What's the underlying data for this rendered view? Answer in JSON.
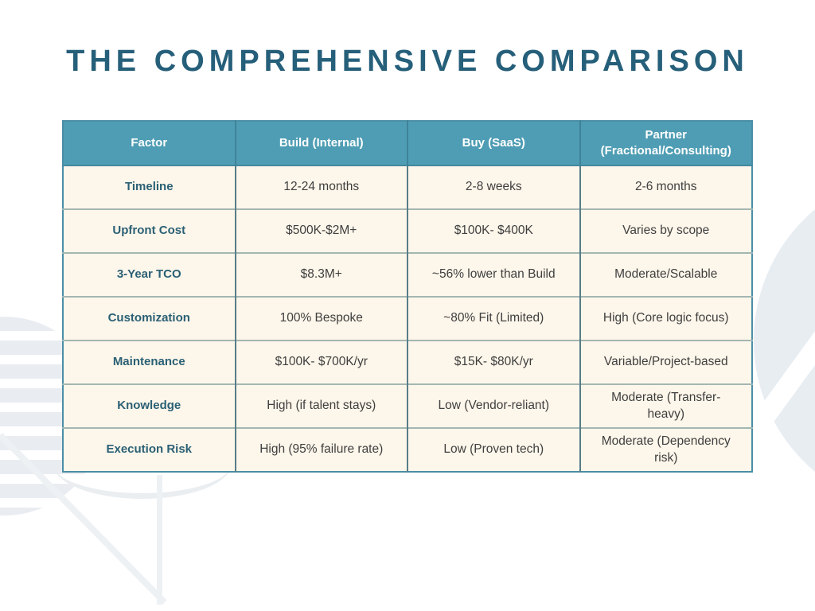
{
  "slide": {
    "title": "THE COMPREHENSIVE COMPARISON"
  },
  "table": {
    "columns": [
      "Factor",
      "Build (Internal)",
      "Buy (SaaS)",
      "Partner (Fractional/Consulting)"
    ],
    "rows": [
      {
        "factor": "Timeline",
        "build": "12-24 months",
        "buy": "2-8 weeks",
        "partner": "2-6 months"
      },
      {
        "factor": "Upfront Cost",
        "build": "$500K-$2M+",
        "buy": "$100K- $400K",
        "partner": "Varies by scope"
      },
      {
        "factor": "3-Year TCO",
        "build": "$8.3M+",
        "buy": "~56% lower than Build",
        "partner": "Moderate/Scalable"
      },
      {
        "factor": "Customization",
        "build": "100% Bespoke",
        "buy": "~80% Fit (Limited)",
        "partner": "High (Core logic focus)"
      },
      {
        "factor": "Maintenance",
        "build": "$100K- $700K/yr",
        "buy": "$15K- $80K/yr",
        "partner": "Variable/Project-based"
      },
      {
        "factor": "Knowledge",
        "build": "High (if talent stays)",
        "buy": "Low (Vendor-reliant)",
        "partner": "Moderate (Transfer-heavy)"
      },
      {
        "factor": "Execution Risk",
        "build": "High (95% failure rate)",
        "buy": "Low (Proven tech)",
        "partner": "Moderate (Dependency risk)"
      }
    ]
  },
  "colors": {
    "title_text": "#265f7a",
    "header_bg": "#4f9db4",
    "header_text": "#ffffff",
    "cell_bg": "#fdf6ea",
    "factor_text": "#2a6075",
    "cell_text": "#3f3f3f",
    "outer_border": "#4a8ea6",
    "vertical_border": "#587d88",
    "horizontal_border": "#a4b6b2",
    "decoration_shape": "#e9edf1"
  }
}
